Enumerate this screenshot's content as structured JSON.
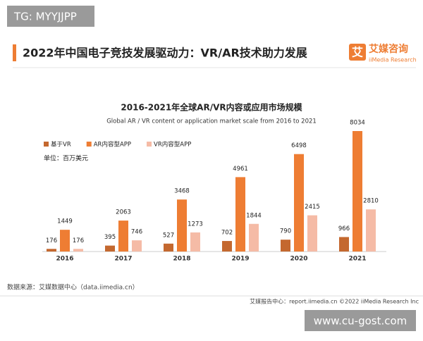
{
  "watermark_top": "TG: MYYJJPP",
  "header": {
    "title": "2022年中国电子竞技发展驱动力：VR/AR技术助力发展",
    "logo_icon": "艾",
    "logo_name": "艾媒咨询",
    "logo_sub": "iiMedia Research"
  },
  "chart_data": {
    "type": "bar",
    "title": "2016-2021年全球AR/VR内容或应用市场规模",
    "subtitle": "Global AR / VR content or application market scale from 2016 to 2021",
    "unit": "单位：百万美元",
    "categories": [
      "2016",
      "2017",
      "2018",
      "2019",
      "2020",
      "2021"
    ],
    "series": [
      {
        "name": "基于VR",
        "color": "#c4682f",
        "values": [
          176,
          395,
          527,
          702,
          790,
          966
        ]
      },
      {
        "name": "AR内容型APP",
        "color": "#ee7d33",
        "values": [
          1449,
          2063,
          3468,
          4961,
          6498,
          8034
        ]
      },
      {
        "name": "VR内容型APP",
        "color": "#f5bba6",
        "values": [
          176,
          746,
          1273,
          1844,
          2415,
          2810
        ]
      }
    ]
  },
  "source": "数据来源：艾媒数据中心（data.iimedia.cn）",
  "footer": "艾媒报告中心：report.iimedia.cn  ©2022  iiMedia Research  Inc",
  "watermark_bottom": "www.cu-gost.com"
}
